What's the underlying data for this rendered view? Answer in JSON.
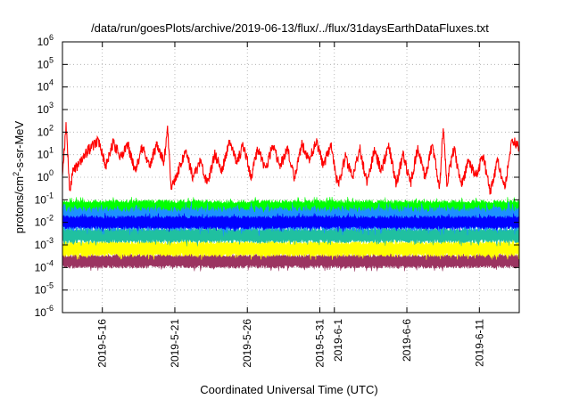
{
  "chart_data": {
    "type": "line",
    "title": "/data/run/goesPlots/archive/2019-06-13/flux/../flux/31daysEarthDataFluxes.txt",
    "xlabel": "Coordinated Universal Time (UTC)",
    "ylabel_base": "protons/cm",
    "ylabel_sup": "2",
    "ylabel_rest": "-s-sr-MeV",
    "yscale": "log",
    "ylim": [
      1e-06,
      1000000.0
    ],
    "y_ticks": [
      {
        "base": "10",
        "exp": "-6"
      },
      {
        "base": "10",
        "exp": "-5"
      },
      {
        "base": "10",
        "exp": "-4"
      },
      {
        "base": "10",
        "exp": "-3"
      },
      {
        "base": "10",
        "exp": "-2"
      },
      {
        "base": "10",
        "exp": "-1"
      },
      {
        "base": "10",
        "exp": "0"
      },
      {
        "base": "10",
        "exp": "1"
      },
      {
        "base": "10",
        "exp": "2"
      },
      {
        "base": "10",
        "exp": "3"
      },
      {
        "base": "10",
        "exp": "4"
      },
      {
        "base": "10",
        "exp": "5"
      },
      {
        "base": "10",
        "exp": "6"
      }
    ],
    "x_range": [
      "2019-05-13T06:00",
      "2019-06-13T18:00"
    ],
    "x_ticks": [
      {
        "date": "2019-05-16",
        "label": "2019-5-16"
      },
      {
        "date": "2019-05-21",
        "label": "2019-5-21"
      },
      {
        "date": "2019-05-26",
        "label": "2019-5-26"
      },
      {
        "date": "2019-05-31",
        "label": "2019-5-31"
      },
      {
        "date": "2019-06-01",
        "label": "2019-6-1"
      },
      {
        "date": "2019-06-06",
        "label": "2019-6-6"
      },
      {
        "date": "2019-06-11",
        "label": "2019-6-11"
      }
    ],
    "grid": true,
    "legend": "none",
    "series": [
      {
        "color": "#9b3461",
        "style": "band",
        "x": [
          "2019-05-13T06:00",
          "2019-05-18T00:00",
          "2019-05-23T00:00",
          "2019-05-28T00:00",
          "2019-06-02T00:00",
          "2019-06-07T00:00",
          "2019-06-13T18:00"
        ],
        "y_low": [
          9e-05,
          9e-05,
          9e-05,
          9e-05,
          9e-05,
          9e-05,
          9e-05
        ],
        "y_high": [
          0.0004,
          0.0004,
          0.0004,
          0.0004,
          0.0004,
          0.0004,
          0.0004
        ]
      },
      {
        "color": "#ffff00",
        "style": "band",
        "x": [
          "2019-05-13T06:00",
          "2019-05-18T00:00",
          "2019-05-23T00:00",
          "2019-05-28T00:00",
          "2019-06-02T00:00",
          "2019-06-07T00:00",
          "2019-06-13T18:00"
        ],
        "y_low": [
          0.0003,
          0.0003,
          0.0003,
          0.0003,
          0.0003,
          0.0003,
          0.0003
        ],
        "y_high": [
          0.0015,
          0.0015,
          0.0015,
          0.0015,
          0.0015,
          0.0015,
          0.0015
        ]
      },
      {
        "color": "#20c0a0",
        "style": "band",
        "x": [
          "2019-05-13T06:00",
          "2019-05-18T00:00",
          "2019-05-23T00:00",
          "2019-05-28T00:00",
          "2019-06-02T00:00",
          "2019-06-07T00:00",
          "2019-06-13T18:00"
        ],
        "y_low": [
          0.0012,
          0.0012,
          0.0012,
          0.0012,
          0.0012,
          0.0012,
          0.0012
        ],
        "y_high": [
          0.006,
          0.006,
          0.006,
          0.006,
          0.006,
          0.006,
          0.006
        ]
      },
      {
        "color": "#00ff00",
        "style": "band",
        "x": [
          "2019-05-13T06:00",
          "2019-05-18T00:00",
          "2019-05-23T00:00",
          "2019-05-28T00:00",
          "2019-06-02T00:00",
          "2019-06-07T00:00",
          "2019-06-13T18:00"
        ],
        "y_low": [
          0.02,
          0.02,
          0.02,
          0.02,
          0.02,
          0.02,
          0.02
        ],
        "y_high": [
          0.1,
          0.1,
          0.1,
          0.1,
          0.1,
          0.1,
          0.1
        ]
      },
      {
        "color": "#1e90ff",
        "style": "band",
        "x": [
          "2019-05-13T06:00",
          "2019-05-18T00:00",
          "2019-05-23T00:00",
          "2019-05-28T00:00",
          "2019-06-02T00:00",
          "2019-06-07T00:00",
          "2019-06-13T18:00"
        ],
        "y_low": [
          0.004,
          0.004,
          0.004,
          0.004,
          0.004,
          0.004,
          0.004
        ],
        "y_high": [
          0.05,
          0.05,
          0.05,
          0.05,
          0.05,
          0.05,
          0.05
        ]
      },
      {
        "color": "#0000ff",
        "style": "band",
        "x": [
          "2019-05-13T06:00",
          "2019-05-18T00:00",
          "2019-05-23T00:00",
          "2019-05-28T00:00",
          "2019-06-02T00:00",
          "2019-06-07T00:00",
          "2019-06-13T18:00"
        ],
        "y_low": [
          0.005,
          0.005,
          0.005,
          0.005,
          0.005,
          0.005,
          0.005
        ],
        "y_high": [
          0.02,
          0.02,
          0.02,
          0.02,
          0.02,
          0.02,
          0.02
        ]
      },
      {
        "color": "#ff0000",
        "style": "line",
        "x": [
          "2019-05-13T06:00",
          "2019-05-13T12:00",
          "2019-05-13T18:00",
          "2019-05-14T00:00",
          "2019-05-14T12:00",
          "2019-05-15T00:00",
          "2019-05-15T18:00",
          "2019-05-16T06:00",
          "2019-05-16T18:00",
          "2019-05-17T06:00",
          "2019-05-17T18:00",
          "2019-05-18T06:00",
          "2019-05-18T18:00",
          "2019-05-19T06:00",
          "2019-05-19T18:00",
          "2019-05-20T06:00",
          "2019-05-20T12:00",
          "2019-05-20T18:00",
          "2019-05-21T06:00",
          "2019-05-21T18:00",
          "2019-05-22T06:00",
          "2019-05-22T18:00",
          "2019-05-23T06:00",
          "2019-05-23T18:00",
          "2019-05-24T06:00",
          "2019-05-24T18:00",
          "2019-05-25T06:00",
          "2019-05-25T18:00",
          "2019-05-26T06:00",
          "2019-05-26T18:00",
          "2019-05-27T06:00",
          "2019-05-27T18:00",
          "2019-05-28T06:00",
          "2019-05-28T18:00",
          "2019-05-29T06:00",
          "2019-05-29T18:00",
          "2019-05-30T06:00",
          "2019-05-30T18:00",
          "2019-05-31T06:00",
          "2019-05-31T18:00",
          "2019-06-01T06:00",
          "2019-06-01T18:00",
          "2019-06-02T06:00",
          "2019-06-02T18:00",
          "2019-06-03T06:00",
          "2019-06-03T18:00",
          "2019-06-04T06:00",
          "2019-06-04T18:00",
          "2019-06-05T06:00",
          "2019-06-05T18:00",
          "2019-06-06T06:00",
          "2019-06-06T18:00",
          "2019-06-07T06:00",
          "2019-06-07T18:00",
          "2019-06-08T06:00",
          "2019-06-08T12:00",
          "2019-06-08T18:00",
          "2019-06-09T06:00",
          "2019-06-09T18:00",
          "2019-06-10T06:00",
          "2019-06-10T18:00",
          "2019-06-11T06:00",
          "2019-06-11T18:00",
          "2019-06-12T06:00",
          "2019-06-12T18:00",
          "2019-06-13T06:00",
          "2019-06-13T18:00"
        ],
        "y": [
          1.0,
          200,
          0.3,
          2,
          5,
          15,
          40,
          3,
          35,
          8,
          30,
          2,
          20,
          3,
          30,
          5,
          150,
          0.3,
          2,
          15,
          1,
          5,
          0.5,
          10,
          2,
          30,
          5,
          25,
          1,
          20,
          2,
          30,
          3,
          20,
          1,
          30,
          5,
          40,
          3,
          30,
          0.4,
          8,
          1,
          20,
          0.5,
          15,
          2,
          25,
          0.5,
          10,
          0.5,
          20,
          1,
          30,
          0.3,
          200,
          0.5,
          20,
          0.4,
          5,
          1,
          10,
          0.2,
          5,
          0.3,
          50,
          20
        ]
      }
    ]
  }
}
